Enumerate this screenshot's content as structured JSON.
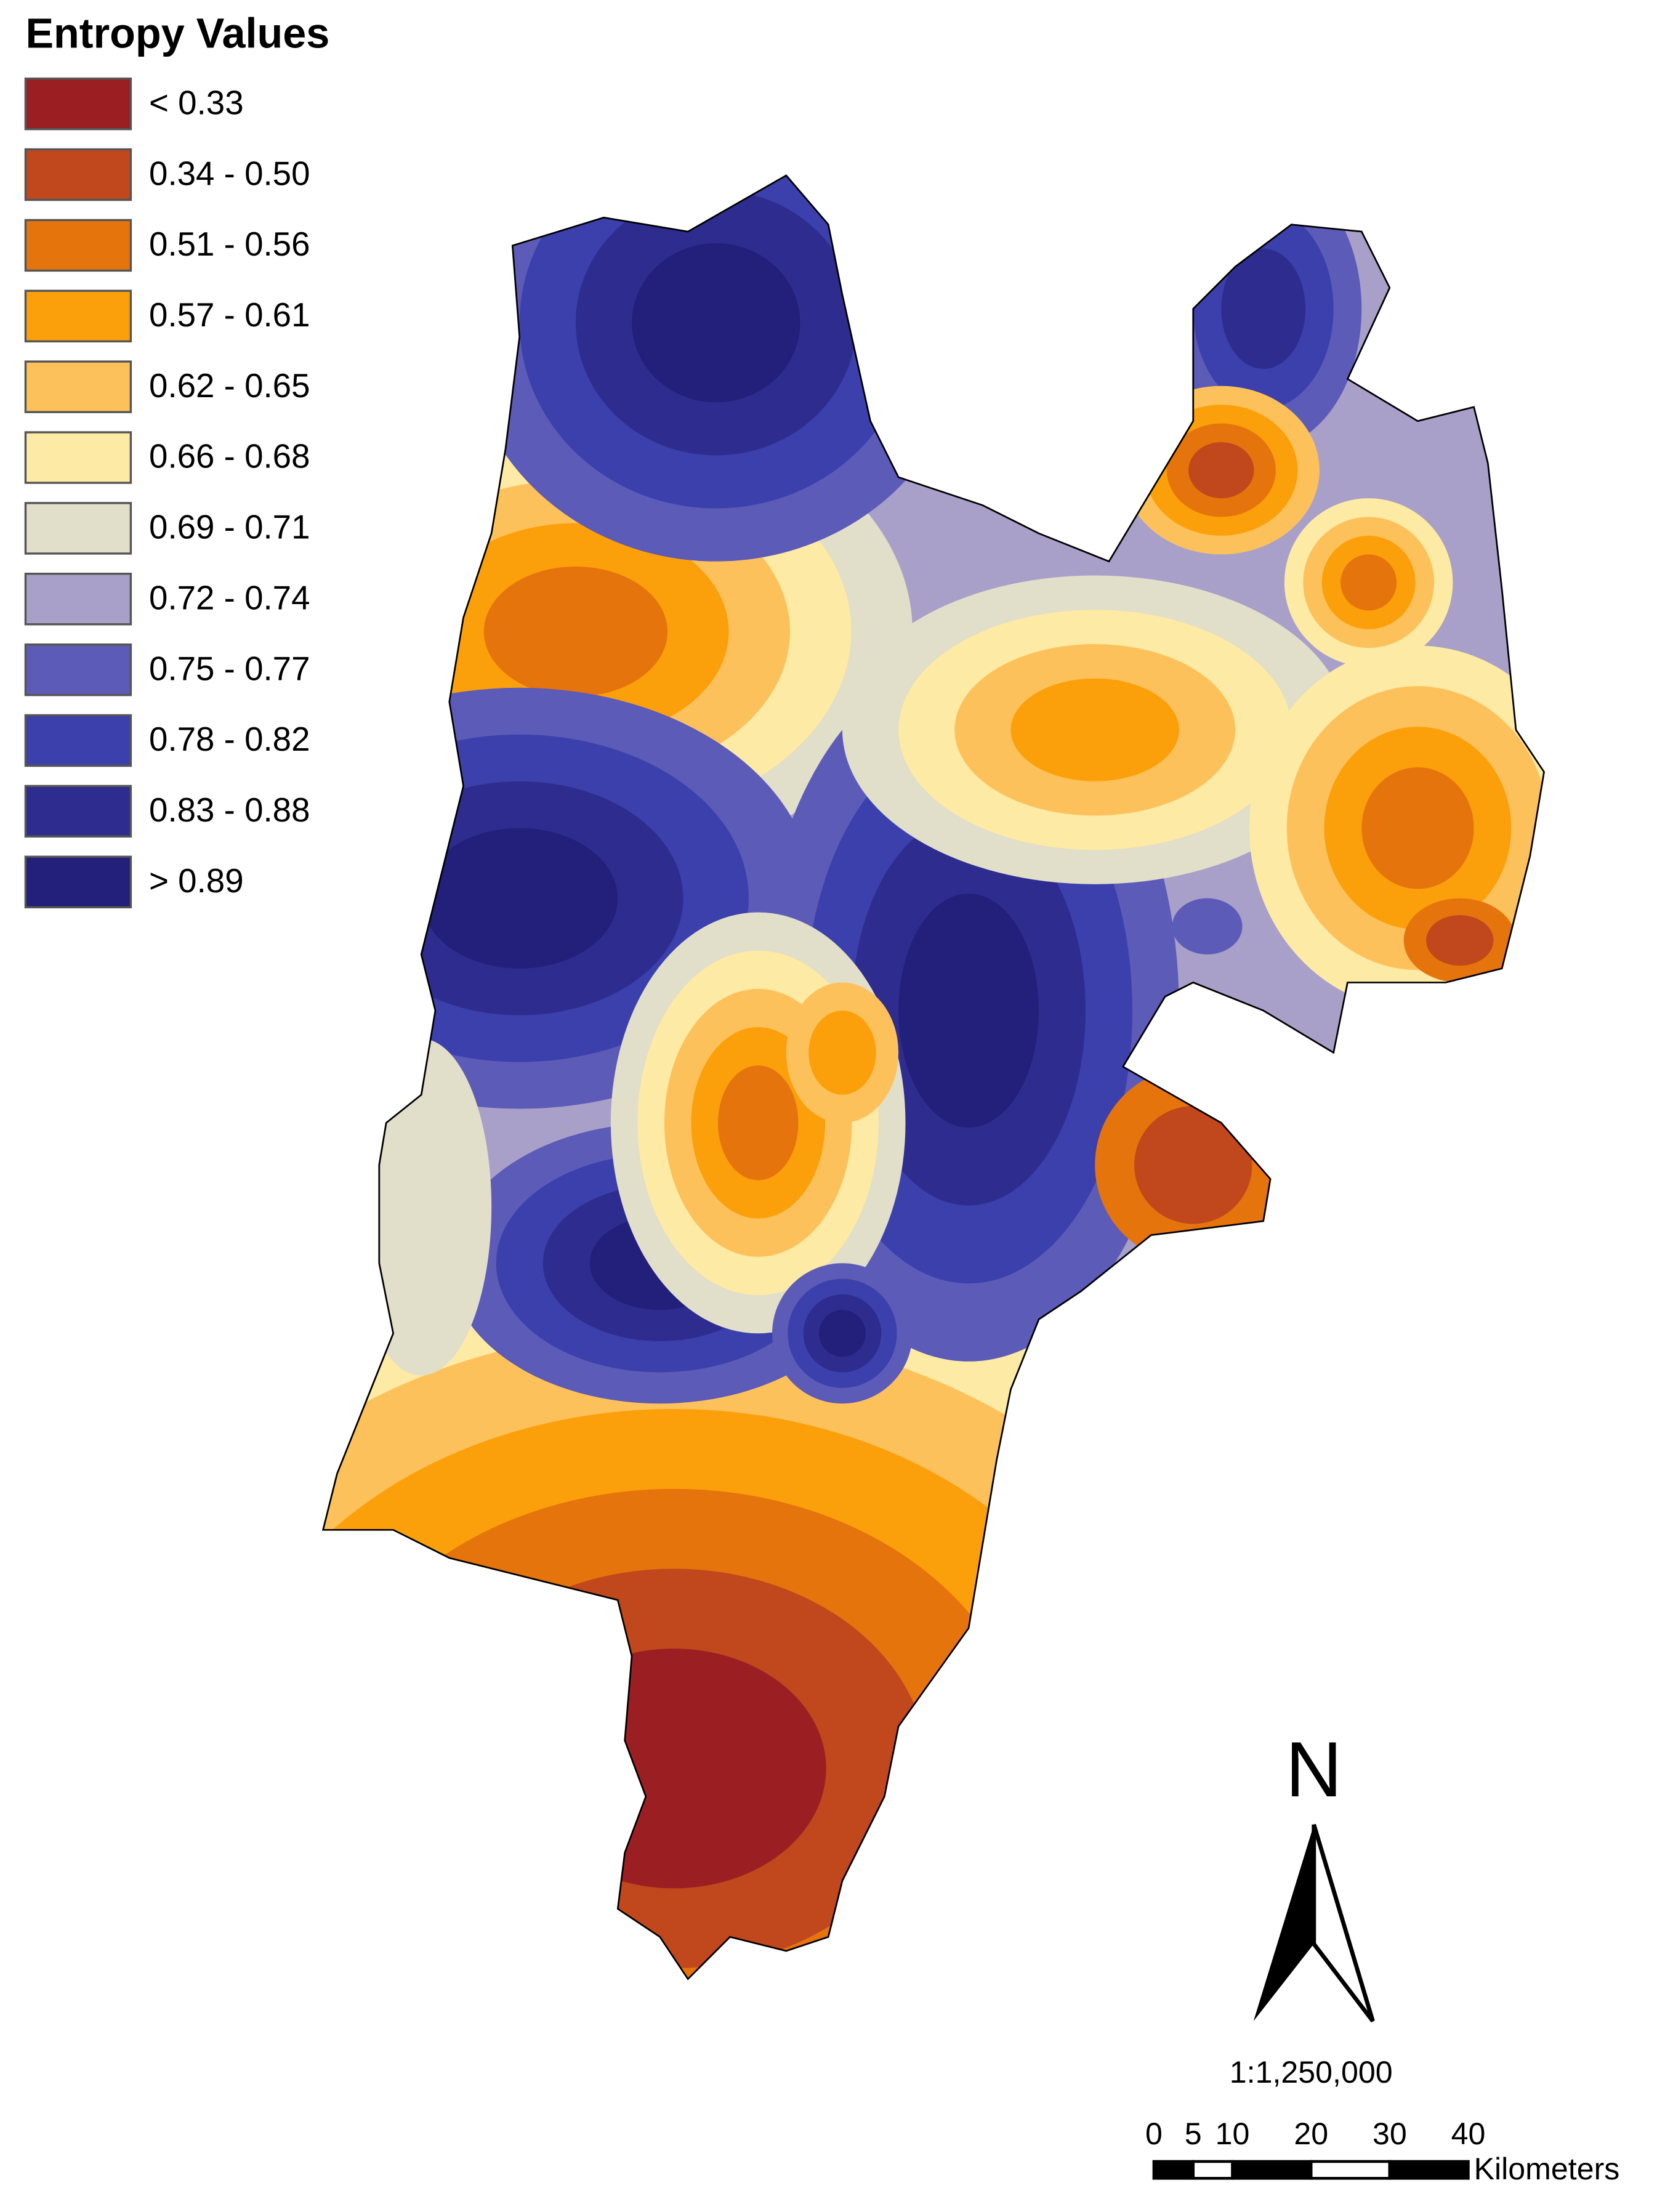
{
  "legend": {
    "title": "Entropy Values",
    "items": [
      {
        "label": "< 0.33",
        "color": "#9b1f22"
      },
      {
        "label": "0.34 - 0.50",
        "color": "#c1471c"
      },
      {
        "label": "0.51 - 0.56",
        "color": "#e6740c"
      },
      {
        "label": "0.57 - 0.61",
        "color": "#fba00b"
      },
      {
        "label": "0.62 - 0.65",
        "color": "#fdc15c"
      },
      {
        "label": "0.66 - 0.68",
        "color": "#fdeaa4"
      },
      {
        "label": "0.69 - 0.71",
        "color": "#e1dec9"
      },
      {
        "label": "0.72 - 0.74",
        "color": "#a8a0c8"
      },
      {
        "label": "0.75 - 0.77",
        "color": "#5d5bb8"
      },
      {
        "label": "0.78 - 0.82",
        "color": "#3c40ac"
      },
      {
        "label": "0.83 - 0.88",
        "color": "#2e2d8f"
      },
      {
        "label": "> 0.89",
        "color": "#22207a"
      }
    ]
  },
  "north_arrow": {
    "label": "N"
  },
  "scale": {
    "ratio": "1:1,250,000",
    "ticks": [
      0,
      5,
      10,
      20,
      30,
      40
    ],
    "unit": "Kilometers"
  }
}
